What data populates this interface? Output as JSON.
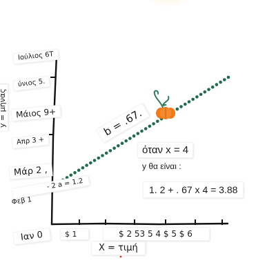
{
  "axes": {
    "y_label": "y = μήνας",
    "x_label": "X = τιμή",
    "y_ticks": [
      "Ιαν 0",
      "Φεβ 1",
      "Μάρ 2 ,",
      "Απρ 3 +",
      "Μάιος 9+",
      "ύνιος 5.",
      "Ιούλιος 6T"
    ],
    "x_ticks": [
      "$ 1",
      "$ 2 53 5 4 $ 5 $ 6"
    ]
  },
  "annotations": {
    "slope": "b = .67.",
    "intercept": "- 2 a = 1.2",
    "condition": "όταν x = 4",
    "result_intro": "y θα είναι :",
    "equation": "1. 2 + . 67 x 4 = 3.88"
  },
  "colors": {
    "dots": "#1f6b4a",
    "start_point": "#e8641e",
    "pumpkin": "#f07a1a",
    "pumpkin_stem": "#2e7d5b",
    "axis": "#111111"
  },
  "icons": {
    "pumpkin": "pumpkin-icon",
    "start_point": "orange-dot-icon"
  }
}
